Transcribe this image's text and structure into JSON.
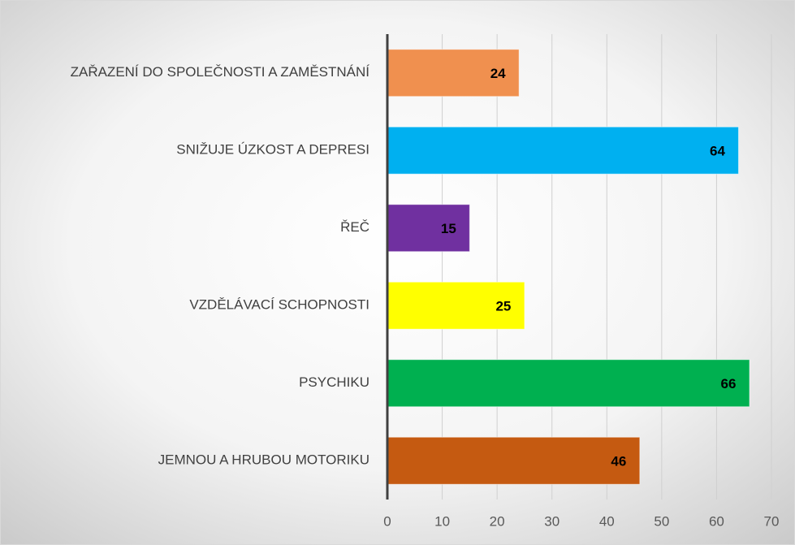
{
  "chart_data": {
    "type": "barh",
    "categories": [
      "ZAŘAZENÍ DO SPOLEČNOSTI A ZAMĚSTNÁNÍ",
      "SNIŽUJE ÚZKOST A DEPRESI",
      "ŘEČ",
      "VZDĚLÁVACÍ SCHOPNOSTI",
      "PSYCHIKU",
      "JEMNOU A HRUBOU MOTORIKU"
    ],
    "values": [
      24,
      64,
      15,
      25,
      66,
      46
    ],
    "colors": [
      "#f0904f",
      "#00b0f0",
      "#7030a0",
      "#ffff00",
      "#00b050",
      "#c55a11"
    ],
    "xlim": [
      0,
      70
    ],
    "xticks": [
      0,
      10,
      20,
      30,
      40,
      50,
      60,
      70
    ],
    "grid": true
  }
}
